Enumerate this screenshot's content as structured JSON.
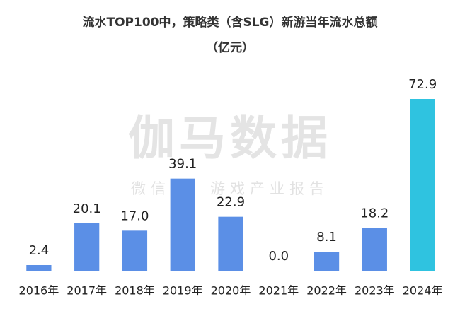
{
  "chart_data": {
    "type": "bar",
    "title": "流水TOP100中，策略类（含SLG）新游当年流水总额",
    "unit": "（亿元）",
    "watermark": "伽马数据",
    "watermark_sub": "微信号：游戏产业报告",
    "categories": [
      "2016年",
      "2017年",
      "2018年",
      "2019年",
      "2020年",
      "2021年",
      "2022年",
      "2023年",
      "2024年"
    ],
    "values": [
      2.4,
      20.1,
      17.0,
      39.1,
      22.9,
      0.0,
      8.1,
      18.2,
      72.9
    ],
    "value_labels": [
      "2.4",
      "20.1",
      "17.0",
      "39.1",
      "22.9",
      "0.0",
      "8.1",
      "18.2",
      "72.9"
    ],
    "colors": [
      "#5b8fe6",
      "#5b8fe6",
      "#5b8fe6",
      "#5b8fe6",
      "#5b8fe6",
      "#5b8fe6",
      "#5b8fe6",
      "#5b8fe6",
      "#2fc3e0"
    ],
    "ylim": [
      0,
      75
    ]
  }
}
